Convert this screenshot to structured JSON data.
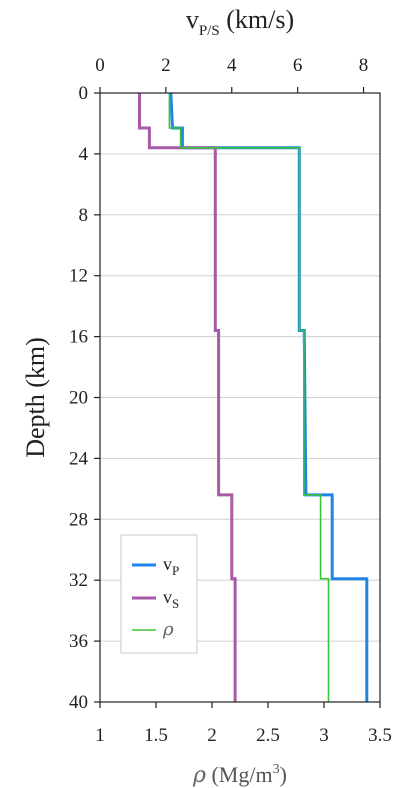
{
  "chart_data": {
    "type": "line",
    "orientation": "depth-profile",
    "top_axis": {
      "label": "v",
      "label_sub": "P/S",
      "label_unit": " (km/s)",
      "range": [
        0,
        8.5
      ],
      "ticks": [
        0,
        2,
        4,
        6,
        8
      ],
      "tick_labels": [
        "0",
        "2",
        "4",
        "6",
        "8"
      ]
    },
    "bottom_axis": {
      "label_symbol": "ρ",
      "label_prefix": " (Mg/m",
      "label_sup": "3",
      "label_suffix": ")",
      "range": [
        1,
        3.5
      ],
      "ticks": [
        1,
        1.5,
        2,
        2.5,
        3,
        3.5
      ],
      "tick_labels": [
        "1",
        "1.5",
        "2",
        "2.5",
        "3",
        "3.5"
      ]
    },
    "y_axis": {
      "label": "Depth (km)",
      "range": [
        0,
        40
      ],
      "inverted": true,
      "ticks": [
        0,
        4,
        8,
        12,
        16,
        20,
        24,
        28,
        32,
        36,
        40
      ],
      "tick_labels": [
        "0",
        "4",
        "8",
        "12",
        "16",
        "20",
        "24",
        "28",
        "32",
        "36",
        "40"
      ]
    },
    "grid": "horizontal",
    "legend_position": "bottom-left",
    "series": [
      {
        "key": "vp",
        "name": "v",
        "name_sub": "P",
        "axis": "top",
        "color": "#1f86e8",
        "points": [
          [
            2.15,
            0
          ],
          [
            2.2,
            2.3
          ],
          [
            2.5,
            2.3
          ],
          [
            2.5,
            3.6
          ],
          [
            6.05,
            3.6
          ],
          [
            6.05,
            15.6
          ],
          [
            6.2,
            15.6
          ],
          [
            6.25,
            26.4
          ],
          [
            7.05,
            26.4
          ],
          [
            7.05,
            31.9
          ],
          [
            8.1,
            31.9
          ],
          [
            8.1,
            40
          ]
        ]
      },
      {
        "key": "vs",
        "name": "v",
        "name_sub": "S",
        "axis": "top",
        "color": "#a75aa6",
        "points": [
          [
            1.2,
            0
          ],
          [
            1.2,
            2.3
          ],
          [
            1.5,
            2.3
          ],
          [
            1.5,
            3.6
          ],
          [
            3.5,
            3.6
          ],
          [
            3.5,
            15.6
          ],
          [
            3.6,
            15.6
          ],
          [
            3.6,
            26.4
          ],
          [
            4.0,
            26.4
          ],
          [
            4.0,
            31.9
          ],
          [
            4.1,
            31.9
          ],
          [
            4.1,
            40
          ]
        ]
      },
      {
        "key": "rho",
        "name": "ρ",
        "axis": "bottom",
        "color": "#3ac43a",
        "points": [
          [
            1.62,
            0
          ],
          [
            1.62,
            2.3
          ],
          [
            1.72,
            2.3
          ],
          [
            1.72,
            3.6
          ],
          [
            2.78,
            3.6
          ],
          [
            2.78,
            15.6
          ],
          [
            2.82,
            15.6
          ],
          [
            2.82,
            26.4
          ],
          [
            2.97,
            26.4
          ],
          [
            2.97,
            31.9
          ],
          [
            3.04,
            31.9
          ],
          [
            3.04,
            40
          ]
        ]
      }
    ]
  }
}
